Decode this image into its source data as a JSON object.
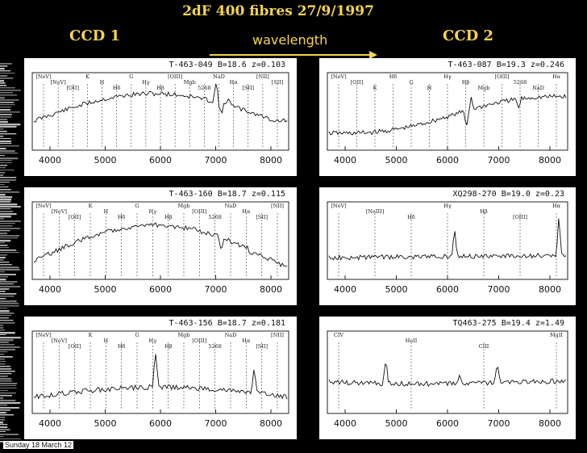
{
  "slide": {
    "title": "2dF 400 fibres 27/9/1997",
    "ccd1_label": "CCD 1",
    "ccd2_label": "CCD 2",
    "wavelength_label": "wavelength",
    "footer": "Sunday 18 March 12",
    "colors": {
      "background": "#000000",
      "accent": "#f5d54a"
    }
  },
  "x_ticks": [
    "4000",
    "5000",
    "6000",
    "7000",
    "8000"
  ],
  "panels": [
    {
      "id": "p1",
      "title": "T-463-049  B=18.6  z=0.103",
      "lines": [
        "[NeV]",
        "[NeV]",
        "[OII]",
        "K",
        "H",
        "Hδ",
        "G",
        "Hγ",
        "Hβ",
        "[OIII]",
        "Mgb",
        "5268",
        "NaD",
        "Hα",
        "[SII]",
        "[NII]",
        "[SII]"
      ]
    },
    {
      "id": "p2",
      "title": "T-463-087  B=19.3  z=0.246",
      "lines": [
        "[NeV]",
        "[OII]",
        "K",
        "Hδ",
        "G",
        "H",
        "Hγ",
        "Hβ",
        "Mgb",
        "[OIII]",
        "5268",
        "NaD",
        "Hα"
      ]
    },
    {
      "id": "p3",
      "title": "T-463-160  B=18.7  z=0.115",
      "lines": [
        "[NeV]",
        "[NeV]",
        "[OII]",
        "K",
        "H",
        "Hδ",
        "G",
        "Hγ",
        "Hβ",
        "Mgb",
        "[OIII]",
        "5268",
        "NaD",
        "Hα",
        "[SII]",
        "[NII]"
      ]
    },
    {
      "id": "p4",
      "title": "XQ298-270  B=19.0  z=0.23",
      "lines": [
        "[NeV]",
        "[NeIII]",
        "Hδ",
        "Hγ",
        "Hβ",
        "[OIII]",
        "Hα"
      ]
    },
    {
      "id": "p5",
      "title": "T-463-156  B=18.7  z=0.181",
      "lines": [
        "[NeV]",
        "[NeV]",
        "[OII]",
        "K",
        "H",
        "Hδ",
        "G",
        "Hγ",
        "Hβ",
        "Mgb",
        "[OIII]",
        "5268",
        "NaD",
        "Hα",
        "[SII]",
        "[NII]"
      ]
    },
    {
      "id": "p6",
      "title": "TQ463-275  B=19.4  z=1.49",
      "lines": [
        "CIV",
        "HeII",
        "CIII",
        "MgII"
      ]
    }
  ]
}
